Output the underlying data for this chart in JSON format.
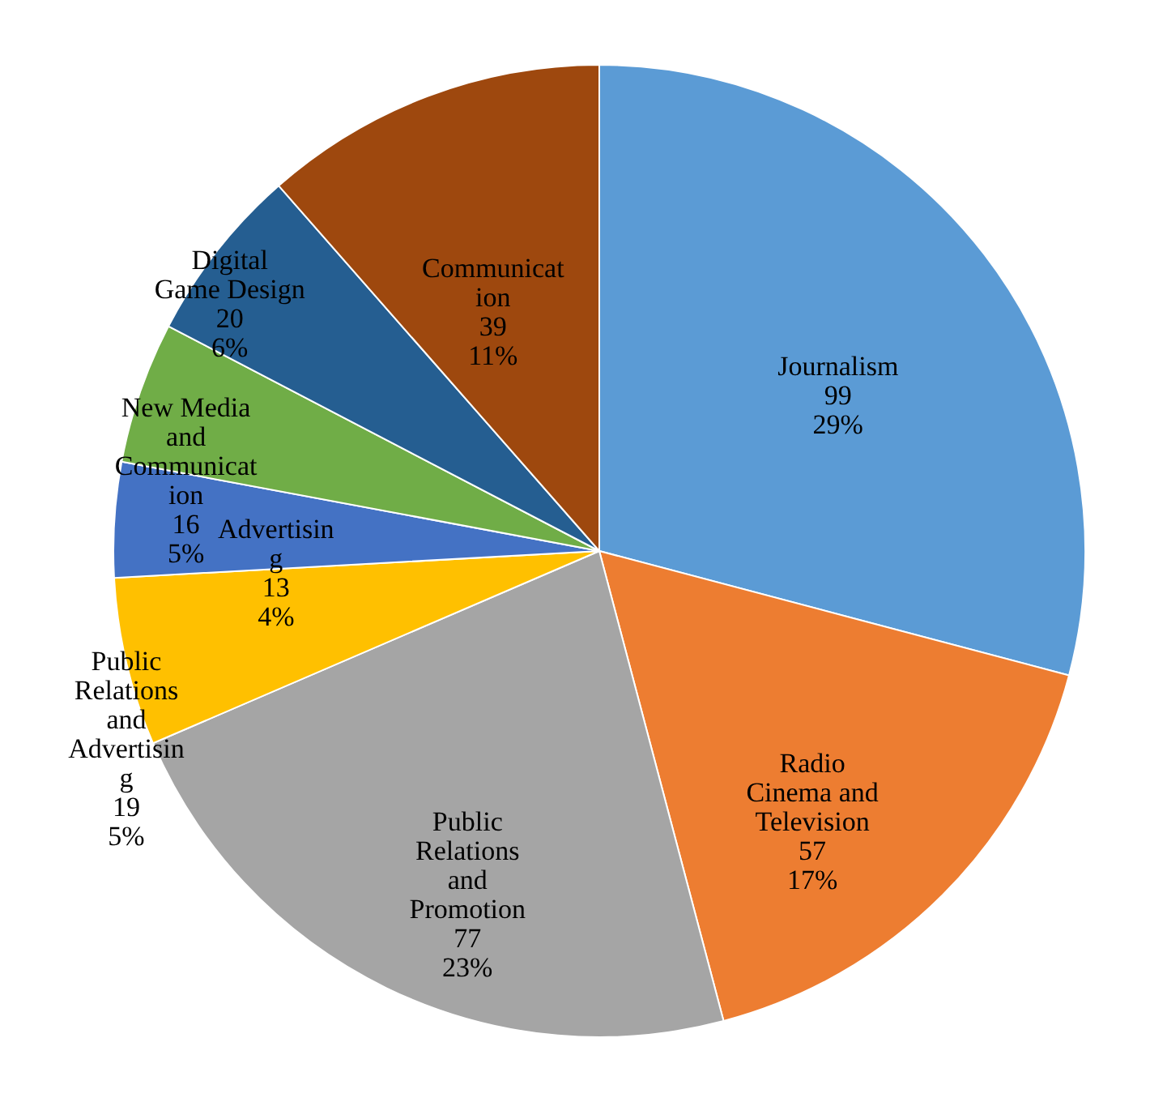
{
  "chart_data": {
    "type": "pie",
    "categories": [
      "Journalism",
      "Radio Cinema and Television",
      "Public Relations and Promotion",
      "Public Relations and Advertising",
      "Advertising",
      "New Media and Communication",
      "Digital Game Design",
      "Communication"
    ],
    "values": [
      99,
      57,
      77,
      19,
      13,
      16,
      20,
      39
    ],
    "colors": [
      "#5b9bd5",
      "#ed7d31",
      "#a5a5a5",
      "#ffc000",
      "#4472c4",
      "#70ad47",
      "#255e91",
      "#9e480e"
    ],
    "value_labels": [
      "99\n29%",
      "57\n17%",
      "77\n23%",
      "19\n5%",
      "13\n4%",
      "16\n5%",
      "20\n6%",
      "39\n11%"
    ],
    "legend": false
  }
}
